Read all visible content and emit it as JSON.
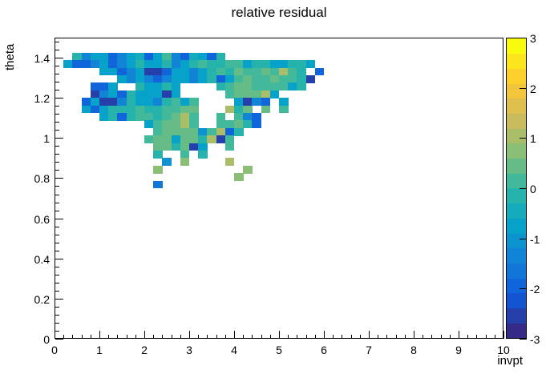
{
  "chart_data": {
    "type": "heatmap",
    "title": "relative residual",
    "xlabel": "invpt",
    "ylabel": "theta",
    "xlim": [
      0,
      10
    ],
    "ylim": [
      0,
      1.5
    ],
    "zlim": [
      -3,
      3
    ],
    "x_bins": 50,
    "y_bins": 40,
    "x_bin_width": 0.2,
    "y_bin_width": 0.0375,
    "grid": false,
    "x_tick_labels": [
      "0",
      "1",
      "2",
      "3",
      "4",
      "5",
      "6",
      "7",
      "8",
      "9",
      "10"
    ],
    "y_tick_labels": [
      "0",
      "0.2",
      "0.4",
      "0.6",
      "0.8",
      "1",
      "1.2",
      "1.4"
    ],
    "y_tick_values": [
      0,
      0.2,
      0.4,
      0.6,
      0.8,
      1,
      1.2,
      1.4
    ],
    "x_minor_step": 0.2,
    "y_minor_step": 0.04,
    "colorbar_tick_labels": [
      "-3",
      "-2",
      "-1",
      "0",
      "1",
      "2",
      "3"
    ],
    "colorbar_tick_values": [
      -3,
      -2,
      -1,
      0,
      1,
      2,
      3
    ],
    "n_bands": 20,
    "palette_bands": [
      "#352A87",
      "#253FAB",
      "#1554D0",
      "#1065DB",
      "#1275D8",
      "#1284D5",
      "#0D93D0",
      "#07A2CA",
      "#15ABBC",
      "#26B3AC",
      "#41B99A",
      "#66BC87",
      "#8BBF75",
      "#AABD69",
      "#C9BB5C",
      "#DFBF4D",
      "#F2C53C",
      "#FDD02C",
      "#FBE61D",
      "#F9FB0E"
    ],
    "cell_encoding": "rows[].cells: one char per x-bin starting at bin 1 (invpt 0.2-0.4); '.' = empty bin, otherwise base36 index k into palette_bands where band k spans z value [-3+0.3k, -2.7+0.3k]; rows[].j is the y-bin index, theta span = [j*0.0375, (j+1)*0.0375]",
    "rows": [
      {
        "j": 37,
        "theta_lo": 1.3875,
        "cells": ".9577357837a538739............"
      },
      {
        "j": 36,
        "theta_lo": 1.35,
        "cells": "733573579779579a99aa79977997.."
      },
      {
        "j": 35,
        "theta_lo": 1.3125,
        "cells": "....7735711377579a9baabada9.3."
      },
      {
        "j": 34,
        "theta_lo": 1.275,
        "cells": "......7575357757937abaabaa91.."
      },
      {
        "j": 33,
        "theta_lo": 1.2375,
        "cells": "...337..97797....9abbaaaa79..."
      },
      {
        "j": 32,
        "theta_lo": 1.2,
        "cells": "...1573977717.....abbbd7......"
      },
      {
        "j": 31,
        "theta_lo": 1.1625,
        "cells": "..3711597759a7a....7153.7....."
      },
      {
        "j": 30,
        "theta_lo": 1.125,
        "cells": "..737999a99aabb...d9b.b.a....."
      },
      {
        "j": 29,
        "theta_lo": 1.0875,
        "cells": "....7939aa9abda..a.a53........"
      },
      {
        "j": 28,
        "theta_lo": 1.05,
        "cells": ".........7abbda..aab93........"
      },
      {
        "j": 27,
        "theta_lo": 1.0125,
        "cells": "..........abbbb6ad39.........."
      },
      {
        "j": 26,
        "theta_lo": 0.975,
        "cells": ".........abb7bb9d1a..........."
      },
      {
        "j": 25,
        "theta_lo": 0.9375,
        "cells": "..........bb9b17..a..........."
      },
      {
        "j": 24,
        "theta_lo": 0.9,
        "cells": "..........9..a.9.............."
      },
      {
        "j": 23,
        "theta_lo": 0.8625,
        "cells": "...........6.c....d..........."
      },
      {
        "j": 22,
        "theta_lo": 0.825,
        "cells": "..........c.........c........."
      },
      {
        "j": 21,
        "theta_lo": 0.7875,
        "cells": "...................c.........."
      },
      {
        "j": 20,
        "theta_lo": 0.75,
        "cells": "..........4..................."
      }
    ]
  }
}
